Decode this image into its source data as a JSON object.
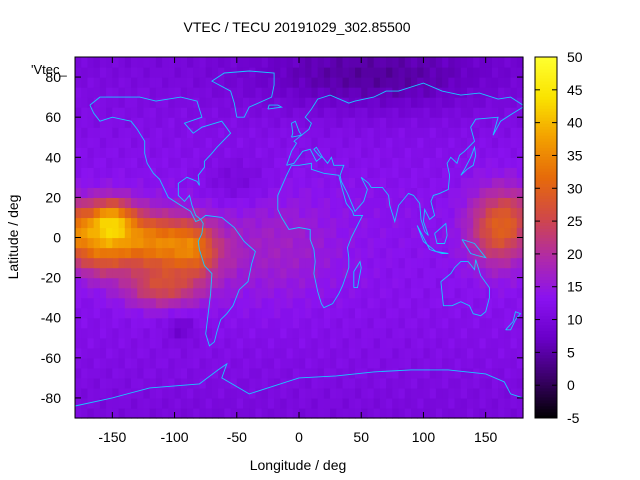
{
  "chart_data": {
    "type": "heatmap",
    "title": "VTEC / TECU 20191029_302.85500",
    "xlabel": "Longitude / deg",
    "ylabel": "Latitude / deg",
    "legend_key": "'Vtec_",
    "xlim": [
      -180,
      180
    ],
    "ylim": [
      -90,
      90
    ],
    "x_ticks": [
      -150,
      -100,
      -50,
      0,
      50,
      100,
      150
    ],
    "y_ticks": [
      -80,
      -60,
      -40,
      -20,
      0,
      20,
      40,
      60,
      80
    ],
    "colorbar": {
      "range": [
        -5,
        50
      ],
      "ticks": [
        -5,
        0,
        5,
        10,
        15,
        20,
        25,
        30,
        35,
        40,
        45,
        50
      ],
      "palette": [
        "#000000",
        "#3a0068",
        "#6a00c8",
        "#8a12f0",
        "#b02aa8",
        "#d04848",
        "#e66a0a",
        "#f3a000",
        "#fae300",
        "#ffff2f"
      ]
    },
    "tec_field": {
      "background_value": 10,
      "features": [
        {
          "name": "pacific-equatorial-band",
          "lon": -115,
          "lat": 5,
          "value": 34
        },
        {
          "name": "pacific-peak",
          "lon": -150,
          "lat": 10,
          "value": 44
        },
        {
          "name": "west-pacific-band",
          "lon": 160,
          "lat": 5,
          "value": 28
        },
        {
          "name": "south-pacific-crest",
          "lon": -110,
          "lat": -25,
          "value": 30
        },
        {
          "name": "north-trough",
          "lon": 60,
          "lat": 80,
          "value": 4
        },
        {
          "name": "south-trough",
          "lon": -95,
          "lat": -45,
          "value": 6
        }
      ]
    },
    "grid": false
  },
  "colors": {
    "coastline": "#19c8ff",
    "axis": "#000000"
  }
}
